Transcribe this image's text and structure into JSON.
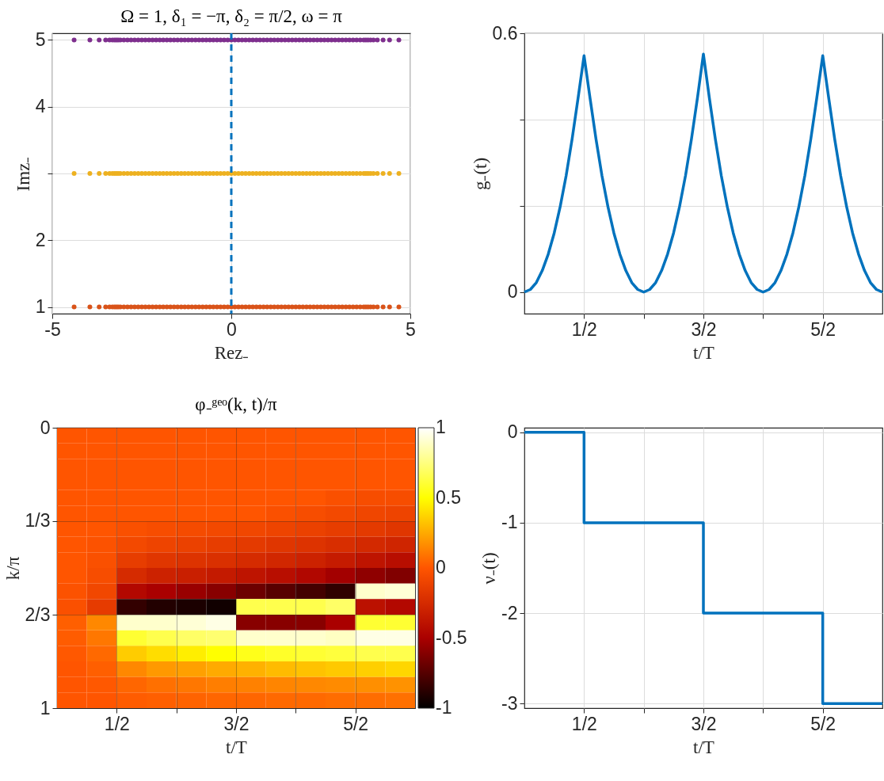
{
  "chart_data": [
    {
      "type": "scatter",
      "title": "Ω = 1, δ₁ = −π, δ₂ = π/2, ω = π",
      "xlabel": "Rez₋",
      "ylabel": "Imz₋",
      "marker": "circle",
      "grid": true,
      "xlim": [
        -5,
        5
      ],
      "xticks": [
        -5,
        0,
        5
      ],
      "ylim": [
        0.9,
        5.1
      ],
      "yticks": [
        1,
        2,
        {
          "value": 3,
          "label": null
        },
        4,
        5
      ],
      "x": [
        -4.39,
        -3.95,
        -3.69,
        -3.51,
        -3.4,
        -3.32,
        -3.26,
        -3.21,
        -3.16,
        -3.1,
        -3,
        -2.9,
        -2.8,
        -2.7,
        -2.6,
        -2.5,
        -2.4,
        -2.3,
        -2.2,
        -2.1,
        -2,
        -1.9,
        -1.8,
        -1.7,
        -1.6,
        -1.5,
        -1.4,
        -1.3,
        -1.2,
        -1.1,
        -1,
        -0.9,
        -0.8,
        -0.7,
        -0.6,
        -0.5,
        -0.4,
        -0.3,
        -0.2,
        -0.1,
        0,
        0.1,
        0.2,
        0.3,
        0.4,
        0.5,
        0.6,
        0.7,
        0.8,
        0.9,
        1,
        1.1,
        1.2,
        1.3,
        1.4,
        1.5,
        1.6,
        1.7,
        1.8,
        1.9,
        2,
        2.1,
        2.2,
        2.3,
        2.4,
        2.5,
        2.6,
        2.7,
        2.8,
        2.9,
        3,
        3.1,
        3.2,
        3.3,
        3.4,
        3.5,
        3.6,
        3.7,
        3.76,
        3.82,
        3.89,
        3.97,
        4.08,
        4.24,
        4.42,
        4.68
      ],
      "series": [
        {
          "color": "#d95319",
          "values": [
            1,
            1,
            1,
            1,
            1,
            1,
            1,
            1,
            1,
            1,
            1,
            1,
            1,
            1,
            1,
            1,
            1,
            1,
            1,
            1,
            1,
            1,
            1,
            1,
            1,
            1,
            1,
            1,
            1,
            1,
            1,
            1,
            1,
            1,
            1,
            1,
            1,
            1,
            1,
            1,
            1,
            1,
            1,
            1,
            1,
            1,
            1,
            1,
            1,
            1,
            1,
            1,
            1,
            1,
            1,
            1,
            1,
            1,
            1,
            1,
            1,
            1,
            1,
            1,
            1,
            1,
            1,
            1,
            1,
            1,
            1,
            1,
            1,
            1,
            1,
            1,
            1,
            1,
            1,
            1,
            1,
            1,
            1,
            1,
            1,
            1
          ]
        },
        {
          "color": "#edb120",
          "values": [
            3,
            3,
            3,
            3,
            3,
            3,
            3,
            3,
            3,
            3,
            3,
            3,
            3,
            3,
            3,
            3,
            3,
            3,
            3,
            3,
            3,
            3,
            3,
            3,
            3,
            3,
            3,
            3,
            3,
            3,
            3,
            3,
            3,
            3,
            3,
            3,
            3,
            3,
            3,
            3,
            3,
            3,
            3,
            3,
            3,
            3,
            3,
            3,
            3,
            3,
            3,
            3,
            3,
            3,
            3,
            3,
            3,
            3,
            3,
            3,
            3,
            3,
            3,
            3,
            3,
            3,
            3,
            3,
            3,
            3,
            3,
            3,
            3,
            3,
            3,
            3,
            3,
            3,
            3,
            3,
            3,
            3,
            3,
            3,
            3,
            3
          ]
        },
        {
          "color": "#7e2f8e",
          "values": [
            5,
            5,
            5,
            5,
            5,
            5,
            5,
            5,
            5,
            5,
            5,
            5,
            5,
            5,
            5,
            5,
            5,
            5,
            5,
            5,
            5,
            5,
            5,
            5,
            5,
            5,
            5,
            5,
            5,
            5,
            5,
            5,
            5,
            5,
            5,
            5,
            5,
            5,
            5,
            5,
            5,
            5,
            5,
            5,
            5,
            5,
            5,
            5,
            5,
            5,
            5,
            5,
            5,
            5,
            5,
            5,
            5,
            5,
            5,
            5,
            5,
            5,
            5,
            5,
            5,
            5,
            5,
            5,
            5,
            5,
            5,
            5,
            5,
            5,
            5,
            5,
            5,
            5,
            5,
            5,
            5,
            5,
            5,
            5,
            5,
            5
          ]
        }
      ],
      "ref_lines": [
        {
          "axis": "x",
          "value": 0,
          "color": "#0072bd",
          "line_style": "dashed"
        }
      ]
    },
    {
      "type": "line",
      "xlabel": "t/T",
      "ylabel": "g₋(t)",
      "grid": true,
      "line_style": "solid",
      "xlim": [
        0,
        3
      ],
      "xticks": [
        {
          "value": 0.5,
          "label": "1/2"
        },
        {
          "value": 1,
          "label": null
        },
        {
          "value": 1.5,
          "label": "3/2"
        },
        {
          "value": 2,
          "label": null
        },
        {
          "value": 2.5,
          "label": "5/2"
        }
      ],
      "ylim": [
        -0.05,
        0.6
      ],
      "yticks": [
        0,
        {
          "value": 0.2,
          "label": null
        },
        {
          "value": 0.4,
          "label": null
        },
        0.6
      ],
      "x": [
        0,
        0.05,
        0.1,
        0.15,
        0.2,
        0.25,
        0.3,
        0.35,
        0.4,
        0.45,
        0.5,
        0.55,
        0.6,
        0.65,
        0.7,
        0.75,
        0.8,
        0.85,
        0.9,
        0.95,
        1,
        1.05,
        1.1,
        1.15,
        1.2,
        1.25,
        1.3,
        1.35,
        1.4,
        1.45,
        1.5,
        1.55,
        1.6,
        1.65,
        1.7,
        1.75,
        1.8,
        1.85,
        1.9,
        1.95,
        2,
        2.05,
        2.1,
        2.15,
        2.2,
        2.25,
        2.3,
        2.35,
        2.4,
        2.45,
        2.5,
        2.55,
        2.6,
        2.65,
        2.7,
        2.75,
        2.8,
        2.85,
        2.9,
        2.95,
        3
      ],
      "series": [
        {
          "color": "#0072bd",
          "values": [
            0,
            0.006,
            0.022,
            0.05,
            0.088,
            0.137,
            0.198,
            0.27,
            0.355,
            0.45,
            0.548,
            0.45,
            0.355,
            0.27,
            0.198,
            0.137,
            0.088,
            0.05,
            0.022,
            0.006,
            0,
            0.006,
            0.022,
            0.05,
            0.088,
            0.137,
            0.198,
            0.27,
            0.355,
            0.45,
            0.552,
            0.45,
            0.355,
            0.27,
            0.198,
            0.137,
            0.088,
            0.05,
            0.022,
            0.006,
            0,
            0.006,
            0.022,
            0.05,
            0.088,
            0.137,
            0.198,
            0.27,
            0.355,
            0.45,
            0.548,
            0.45,
            0.355,
            0.27,
            0.198,
            0.137,
            0.088,
            0.05,
            0.022,
            0.006,
            0
          ]
        }
      ]
    },
    {
      "type": "heatmap",
      "title": "φ₋ᵍᵉᵒ(k, t)/π",
      "xlabel": "t/T",
      "ylabel": "k/π",
      "grid": true,
      "xlim": [
        0,
        3
      ],
      "xticks": [
        {
          "value": 0.5,
          "label": "1/2"
        },
        {
          "value": 1,
          "label": null
        },
        {
          "value": 1.5,
          "label": "3/2"
        },
        {
          "value": 2,
          "label": null
        },
        {
          "value": 2.5,
          "label": "5/2"
        }
      ],
      "ylim": [
        1,
        0
      ],
      "yticks": [
        0,
        {
          "value": 0.3333,
          "label": "1/3"
        },
        {
          "value": 0.6667,
          "label": "2/3"
        },
        1
      ],
      "clim": [
        -1,
        1
      ],
      "cticks": [
        -1,
        -0.5,
        0,
        0.5,
        1
      ],
      "colors": [
        "#000000",
        "#aa0000",
        "#ff5500",
        "#ffff00",
        "#ffffff"
      ],
      "x": [
        0.125,
        0.375,
        0.625,
        0.875,
        1.125,
        1.375,
        1.625,
        1.875,
        2.125,
        2.375,
        2.625,
        2.875
      ],
      "y": [
        0.0278,
        0.0833,
        0.1389,
        0.1944,
        0.25,
        0.3056,
        0.3611,
        0.4167,
        0.4722,
        0.5278,
        0.5833,
        0.6389,
        0.6944,
        0.75,
        0.8056,
        0.8611,
        0.9167,
        0.9722
      ],
      "cells": [
        [
          0,
          0,
          0,
          0,
          0,
          0,
          0,
          0,
          0,
          0,
          0,
          0
        ],
        [
          0,
          0,
          0,
          0,
          0,
          0,
          0,
          0,
          0,
          0,
          0,
          0
        ],
        [
          0,
          0,
          0,
          0,
          0,
          0,
          0,
          0,
          0,
          0,
          0,
          0
        ],
        [
          0,
          0,
          0,
          0,
          0,
          0,
          0,
          0,
          0,
          0,
          0,
          0
        ],
        [
          0,
          0,
          0,
          0,
          0,
          0,
          0,
          0,
          0,
          -0.03,
          -0.05,
          -0.05
        ],
        [
          0,
          0,
          0,
          0,
          0,
          0,
          0,
          -0.03,
          -0.05,
          -0.07,
          -0.09,
          -0.1
        ],
        [
          0,
          0,
          -0.03,
          -0.05,
          -0.06,
          -0.07,
          -0.08,
          -0.1,
          -0.12,
          -0.14,
          -0.16,
          -0.18
        ],
        [
          0,
          -0.02,
          -0.07,
          -0.1,
          -0.12,
          -0.14,
          -0.16,
          -0.18,
          -0.2,
          -0.23,
          -0.26,
          -0.28
        ],
        [
          0,
          -0.03,
          -0.14,
          -0.18,
          -0.2,
          -0.22,
          -0.25,
          -0.27,
          -0.3,
          -0.34,
          -0.38,
          -0.42
        ],
        [
          0,
          -0.05,
          -0.25,
          -0.3,
          -0.32,
          -0.35,
          -0.38,
          -0.42,
          -0.46,
          -0.52,
          -0.58,
          -0.62
        ],
        [
          -0.02,
          -0.08,
          -0.45,
          -0.5,
          -0.55,
          -0.6,
          -0.68,
          -0.74,
          -0.8,
          -0.86,
          0.9,
          0.92
        ],
        [
          -0.03,
          -0.15,
          -0.85,
          -0.9,
          -0.92,
          -0.95,
          0.65,
          0.65,
          0.65,
          0.7,
          -0.4,
          -0.45
        ],
        [
          0.03,
          0.15,
          0.9,
          0.9,
          0.92,
          0.95,
          -0.6,
          -0.6,
          -0.6,
          -0.5,
          0.6,
          0.6
        ],
        [
          0.02,
          0.1,
          0.6,
          0.65,
          0.7,
          0.72,
          0.9,
          0.9,
          0.9,
          0.88,
          0.95,
          0.95
        ],
        [
          0.01,
          0.06,
          0.35,
          0.4,
          0.45,
          0.5,
          0.55,
          0.58,
          0.6,
          0.62,
          0.65,
          0.65
        ],
        [
          0,
          0.03,
          0.15,
          0.2,
          0.22,
          0.25,
          0.27,
          0.3,
          0.32,
          0.34,
          0.36,
          0.38
        ],
        [
          0,
          0.01,
          0.05,
          0.08,
          0.1,
          0.12,
          0.13,
          0.14,
          0.15,
          0.16,
          0.17,
          0.18
        ],
        [
          0,
          0,
          0.02,
          0.03,
          0.04,
          0.05,
          0.05,
          0.06,
          0.06,
          0.07,
          0.07,
          0.08
        ]
      ]
    },
    {
      "type": "step",
      "xlabel": "t/T",
      "ylabel": "ν₋(t)",
      "grid": true,
      "line_style": "solid",
      "xlim": [
        0,
        3
      ],
      "xticks": [
        {
          "value": 0.5,
          "label": "1/2"
        },
        {
          "value": 1,
          "label": null
        },
        {
          "value": 1.5,
          "label": "3/2"
        },
        {
          "value": 2,
          "label": null
        },
        {
          "value": 2.5,
          "label": "5/2"
        }
      ],
      "ylim": [
        -3.05,
        0.05
      ],
      "yticks": [
        -3,
        -2,
        -1,
        0
      ],
      "x": [
        0,
        0.5,
        1.5,
        2.5,
        3
      ],
      "series": [
        {
          "color": "#0072bd",
          "values": [
            0,
            -1,
            -2,
            -3,
            -3
          ]
        }
      ]
    }
  ]
}
